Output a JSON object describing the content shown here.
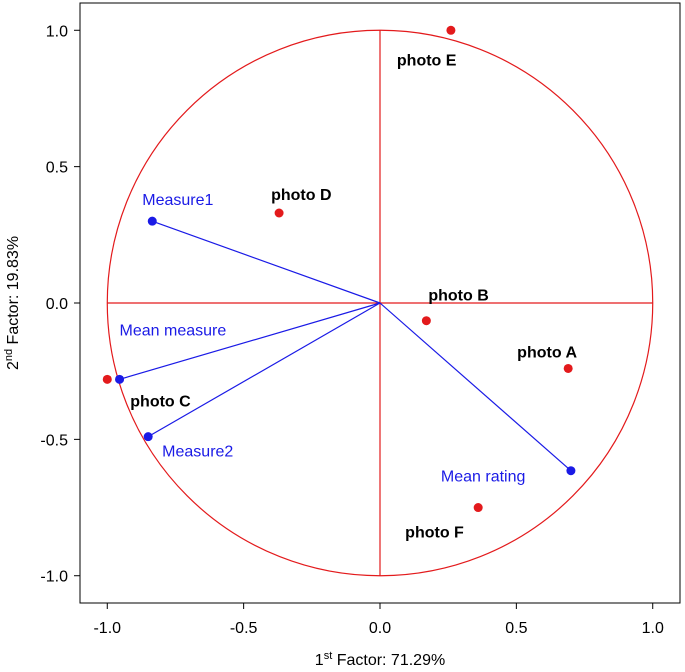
{
  "chart_data": {
    "type": "biplot",
    "xlabel": [
      "1",
      "st",
      " Factor: 71.29%"
    ],
    "ylabel": [
      "2",
      "nd",
      " Factor: 19.83%"
    ],
    "xlim": [
      -1.1,
      1.1
    ],
    "ylim": [
      -1.1,
      1.1
    ],
    "xticks": [
      {
        "value": -1,
        "label": "-1.0"
      },
      -0.5,
      {
        "value": 0,
        "label": "0.0"
      },
      0.5,
      {
        "value": 1,
        "label": "1.0"
      }
    ],
    "yticks": [
      {
        "value": -1,
        "label": "-1.0"
      },
      -0.5,
      {
        "value": 0,
        "label": "0.0"
      },
      0.5,
      {
        "value": 1,
        "label": "1.0"
      }
    ],
    "circle_color": "#e31a1c",
    "points": {
      "color": "#e31a1c",
      "labels": [
        "photo E",
        "photo D",
        "photo B",
        "photo A",
        "photo F",
        "photo C"
      ],
      "x": [
        0.26,
        -0.37,
        0.17,
        0.69,
        0.36,
        -1.0
      ],
      "y": [
        1.0,
        0.33,
        -0.065,
        -0.24,
        -0.75,
        -0.28
      ]
    },
    "vectors": {
      "color": "#1a1ae6",
      "labels": [
        "Measure1",
        "Mean measure",
        "Measure2",
        "Mean rating"
      ],
      "x": [
        -0.835,
        -0.955,
        -0.85,
        0.7
      ],
      "y": [
        0.3,
        -0.28,
        -0.49,
        -0.615
      ]
    }
  }
}
